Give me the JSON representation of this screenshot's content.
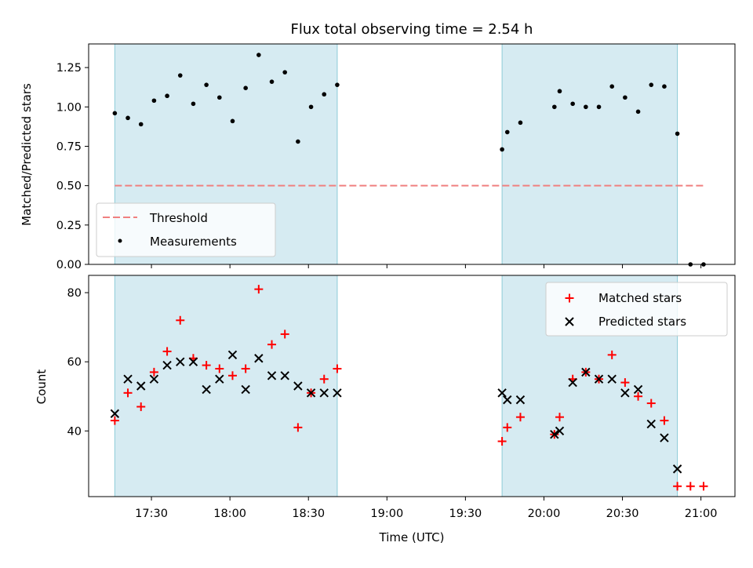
{
  "chart_data": [
    {
      "type": "scatter",
      "title": "Flux total observing time = 2.54 h",
      "xlabel": "",
      "ylabel": "Matched/Predicted stars",
      "ylim": [
        0,
        1.4
      ],
      "yticks": [
        0.0,
        0.25,
        0.5,
        0.75,
        1.0,
        1.25
      ],
      "ytick_labels": [
        "0.00",
        "0.25",
        "0.50",
        "0.75",
        "1.00",
        "1.25"
      ],
      "xtick_labels_shown": false,
      "shaded_intervals": [
        [
          "17:16",
          "18:41"
        ],
        [
          "19:44",
          "20:51"
        ]
      ],
      "threshold": {
        "name": "Threshold",
        "value": 0.5,
        "x_range": [
          "17:16",
          "21:02"
        ],
        "color": "#f08080"
      },
      "series": [
        {
          "name": "Measurements",
          "color": "#000000",
          "x": [
            "17:16",
            "17:21",
            "17:26",
            "17:31",
            "17:36",
            "17:41",
            "17:46",
            "17:51",
            "17:56",
            "18:01",
            "18:06",
            "18:11",
            "18:16",
            "18:21",
            "18:26",
            "18:31",
            "18:36",
            "18:41",
            "19:44",
            "19:46",
            "19:51",
            "20:04",
            "20:06",
            "20:11",
            "20:16",
            "20:21",
            "20:26",
            "20:31",
            "20:36",
            "20:41",
            "20:46",
            "20:51",
            "20:56",
            "21:01"
          ],
          "y": [
            0.96,
            0.93,
            0.89,
            1.04,
            1.07,
            1.2,
            1.02,
            1.14,
            1.06,
            0.91,
            1.12,
            1.33,
            1.16,
            1.22,
            0.78,
            1.0,
            1.08,
            1.14,
            0.73,
            0.84,
            0.9,
            1.0,
            1.1,
            1.02,
            1.0,
            1.0,
            1.13,
            1.06,
            0.97,
            1.14,
            1.13,
            0.83,
            0.0,
            0.0
          ]
        }
      ],
      "legend": {
        "position": "lower-left",
        "entries": [
          "Threshold",
          "Measurements"
        ]
      }
    },
    {
      "type": "scatter",
      "title": "",
      "xlabel": "Time (UTC)",
      "ylabel": "Count",
      "ylim": [
        21,
        85
      ],
      "yticks": [
        40,
        60,
        80
      ],
      "ytick_labels": [
        "40",
        "60",
        "80"
      ],
      "xlim": [
        "17:06",
        "21:13"
      ],
      "xticks": [
        "17:30",
        "18:00",
        "18:30",
        "19:00",
        "19:30",
        "20:00",
        "20:30",
        "21:00"
      ],
      "shaded_intervals": [
        [
          "17:16",
          "18:41"
        ],
        [
          "19:44",
          "20:51"
        ]
      ],
      "series": [
        {
          "name": "Matched stars",
          "marker": "+",
          "color": "#ff0000",
          "x": [
            "17:16",
            "17:21",
            "17:26",
            "17:31",
            "17:36",
            "17:41",
            "17:46",
            "17:51",
            "17:56",
            "18:01",
            "18:06",
            "18:11",
            "18:16",
            "18:21",
            "18:26",
            "18:31",
            "18:36",
            "18:41",
            "19:44",
            "19:46",
            "19:51",
            "20:04",
            "20:06",
            "20:11",
            "20:16",
            "20:21",
            "20:26",
            "20:31",
            "20:36",
            "20:41",
            "20:46",
            "20:51",
            "20:56",
            "21:01"
          ],
          "y": [
            43,
            51,
            47,
            57,
            63,
            72,
            61,
            59,
            58,
            56,
            58,
            81,
            65,
            68,
            41,
            51,
            55,
            58,
            37,
            41,
            44,
            39,
            44,
            55,
            57,
            55,
            62,
            54,
            50,
            48,
            43,
            24,
            24,
            24
          ]
        },
        {
          "name": "Predicted stars",
          "marker": "x",
          "color": "#000000",
          "x": [
            "17:16",
            "17:21",
            "17:26",
            "17:31",
            "17:36",
            "17:41",
            "17:46",
            "17:51",
            "17:56",
            "18:01",
            "18:06",
            "18:11",
            "18:16",
            "18:21",
            "18:26",
            "18:31",
            "18:36",
            "18:41",
            "19:44",
            "19:46",
            "19:51",
            "20:04",
            "20:06",
            "20:11",
            "20:16",
            "20:21",
            "20:26",
            "20:31",
            "20:36",
            "20:41",
            "20:46",
            "20:51"
          ],
          "y": [
            45,
            55,
            53,
            55,
            59,
            60,
            60,
            52,
            55,
            62,
            52,
            61,
            56,
            56,
            53,
            51,
            51,
            51,
            51,
            49,
            49,
            39,
            40,
            54,
            57,
            55,
            55,
            51,
            52,
            42,
            38,
            29
          ]
        }
      ],
      "legend": {
        "position": "top-right",
        "entries": [
          "Matched stars",
          "Predicted stars"
        ]
      }
    }
  ]
}
